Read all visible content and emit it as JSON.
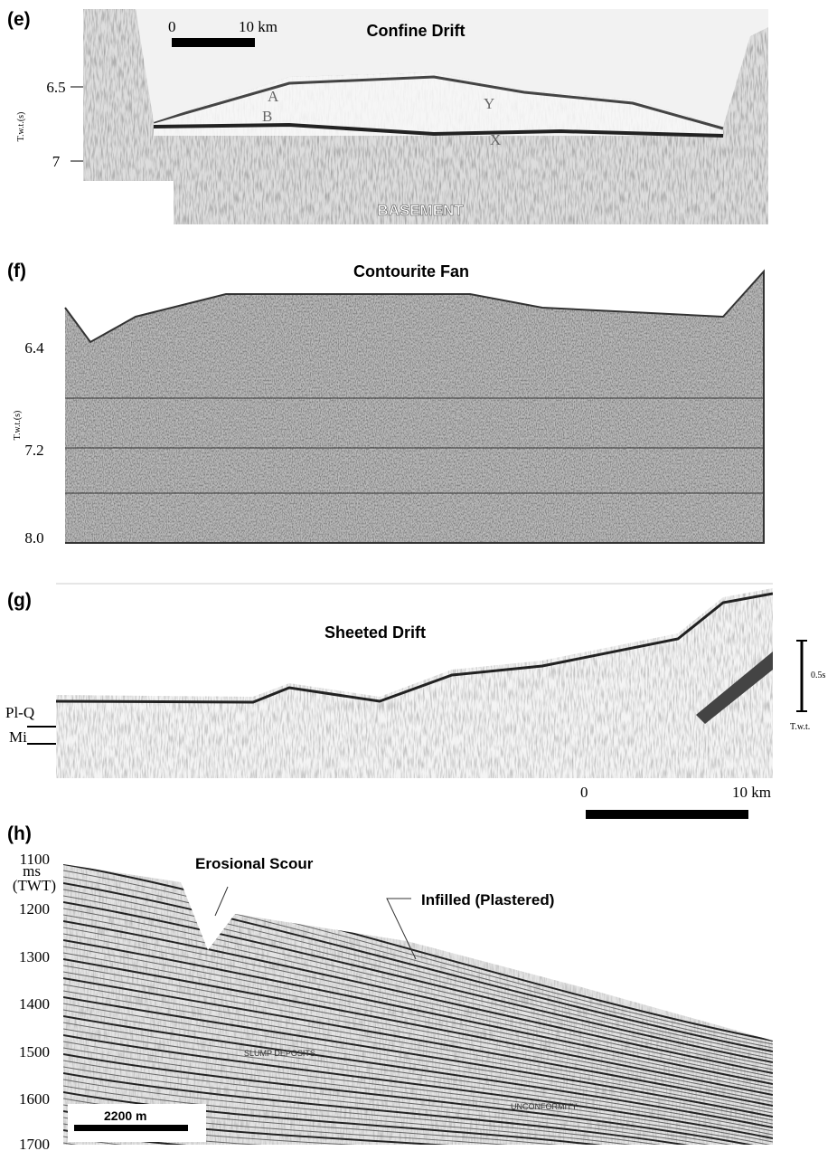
{
  "panels": [
    {
      "label": "(e)",
      "title": "Confine Drift",
      "y_axis_label": "T.w.t.(s)",
      "y_ticks": [
        "6.5",
        "7"
      ],
      "scale_bar": [
        "0",
        "10 km"
      ],
      "annotations": [
        "A",
        "B",
        "Y",
        "X",
        "BASEMENT"
      ]
    },
    {
      "label": "(f)",
      "title": "Contourite Fan",
      "y_axis_label": "T.w.t.(s)",
      "y_ticks": [
        "6.4",
        "7.2",
        "8.0"
      ]
    },
    {
      "label": "(g)",
      "title": "Sheeted Drift",
      "annotations": [
        "Pl-Q",
        "Mi"
      ],
      "vertical_scale": [
        "0.5s",
        "T.w.t."
      ],
      "scale_bar": [
        "0",
        "10 km"
      ]
    },
    {
      "label": "(h)",
      "y_axis_unit": [
        "ms",
        "(TWT)"
      ],
      "y_ticks": [
        "1100",
        "1200",
        "1300",
        "1400",
        "1500",
        "1600",
        "1700"
      ],
      "annotations": [
        "Erosional Scour",
        "Infilled (Plastered)",
        "SLUMP DEPOSITS",
        "UNCONFORMITY"
      ],
      "scale_bar": [
        "2200 m"
      ]
    }
  ]
}
